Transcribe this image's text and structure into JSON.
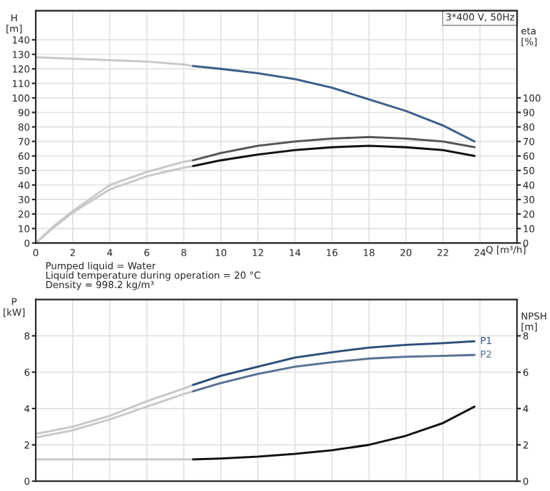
{
  "chart_data": [
    {
      "type": "line",
      "xlabel": "Q [m³/h]",
      "ylabel": "H\n[m]",
      "y2label": "eta\n[%]",
      "annotations": [
        "3*400 V, 50Hz"
      ],
      "xlim": [
        0,
        26
      ],
      "xticks": [
        0,
        2,
        4,
        6,
        8,
        10,
        12,
        14,
        16,
        18,
        20,
        22,
        24
      ],
      "ylim": [
        0,
        160
      ],
      "yticks": [
        0,
        10,
        20,
        30,
        40,
        50,
        60,
        70,
        80,
        90,
        100,
        110,
        120,
        130,
        140
      ],
      "y2lim": [
        0,
        160
      ],
      "y2ticks": [
        0,
        10,
        20,
        30,
        40,
        50,
        60,
        70,
        80,
        90,
        100
      ],
      "grid": true,
      "legend": false,
      "marker": "none",
      "line_style": "solid",
      "series": [
        {
          "color": "#c8c8c8",
          "x": [
            0,
            2,
            4,
            6,
            8,
            8.5
          ],
          "values": [
            128,
            127,
            126,
            125,
            123,
            122
          ]
        },
        {
          "color": "#3d5f8a",
          "x": [
            8.5,
            10,
            12,
            14,
            16,
            18,
            20,
            22,
            23.7
          ],
          "values": [
            122,
            120,
            117,
            113,
            107,
            99,
            91,
            81,
            70
          ]
        },
        {
          "color": "#c8c8c8",
          "x": [
            0,
            1,
            2,
            3,
            4,
            6,
            8,
            8.5
          ],
          "values": [
            0,
            12,
            22,
            31,
            40,
            49,
            56,
            57
          ]
        },
        {
          "color": "#555555",
          "x": [
            8.5,
            10,
            12,
            14,
            16,
            18,
            20,
            22,
            23.7
          ],
          "values": [
            57,
            62,
            67,
            70,
            72,
            73,
            72,
            70,
            66
          ]
        },
        {
          "color": "#c8c8c8",
          "x": [
            0,
            1,
            2,
            3,
            4,
            6,
            8,
            8.5
          ],
          "values": [
            0,
            11,
            21,
            29,
            37,
            46,
            52,
            53
          ]
        },
        {
          "color": "#111111",
          "x": [
            8.5,
            10,
            12,
            14,
            16,
            18,
            20,
            22,
            23.7
          ],
          "values": [
            53,
            57,
            61,
            64,
            66,
            67,
            66,
            64,
            60
          ]
        }
      ]
    },
    {
      "type": "line",
      "ylabel": "P\n[kW]",
      "y2label": "NPSH\n[m]",
      "tick_labels": "y",
      "annotations": [
        "Pumped liquid = Water",
        "Liquid temperature during operation = 20 °C",
        "Density = 998.2 kg/m³"
      ],
      "xlim": [
        0,
        26
      ],
      "ylim": [
        0,
        10
      ],
      "yticks": [
        0,
        2,
        4,
        6,
        8
      ],
      "y2lim": [
        0,
        10
      ],
      "y2ticks": [
        0,
        2,
        4,
        6,
        8
      ],
      "grid": true,
      "legend": false,
      "marker": "none",
      "line_style": "solid",
      "series": [
        {
          "color": "#c8c8c8",
          "x": [
            0,
            2,
            4,
            6,
            8,
            8.5
          ],
          "values": [
            2.6,
            3.0,
            3.6,
            4.4,
            5.1,
            5.3
          ]
        },
        {
          "name": "P1",
          "color": "#2e4f7a",
          "x": [
            8.5,
            10,
            12,
            14,
            16,
            18,
            20,
            22,
            23.7
          ],
          "values": [
            5.3,
            5.8,
            6.3,
            6.8,
            7.1,
            7.35,
            7.5,
            7.6,
            7.7
          ]
        },
        {
          "color": "#c8c8c8",
          "x": [
            0,
            2,
            4,
            6,
            8,
            8.5
          ],
          "values": [
            2.4,
            2.8,
            3.4,
            4.1,
            4.8,
            4.95
          ]
        },
        {
          "name": "P2",
          "color": "#5a7393",
          "x": [
            8.5,
            10,
            12,
            14,
            16,
            18,
            20,
            22,
            23.7
          ],
          "values": [
            4.95,
            5.4,
            5.9,
            6.3,
            6.55,
            6.75,
            6.85,
            6.9,
            6.95
          ]
        },
        {
          "color": "#c8c8c8",
          "x": [
            0,
            2,
            4,
            6,
            8,
            8.5
          ],
          "values": [
            1.2,
            1.2,
            1.2,
            1.2,
            1.2,
            1.2
          ]
        },
        {
          "color": "#111111",
          "x": [
            8.5,
            10,
            12,
            14,
            16,
            18,
            20,
            22,
            23.7
          ],
          "values": [
            1.2,
            1.25,
            1.35,
            1.5,
            1.7,
            2.0,
            2.5,
            3.2,
            4.1
          ]
        }
      ]
    }
  ]
}
